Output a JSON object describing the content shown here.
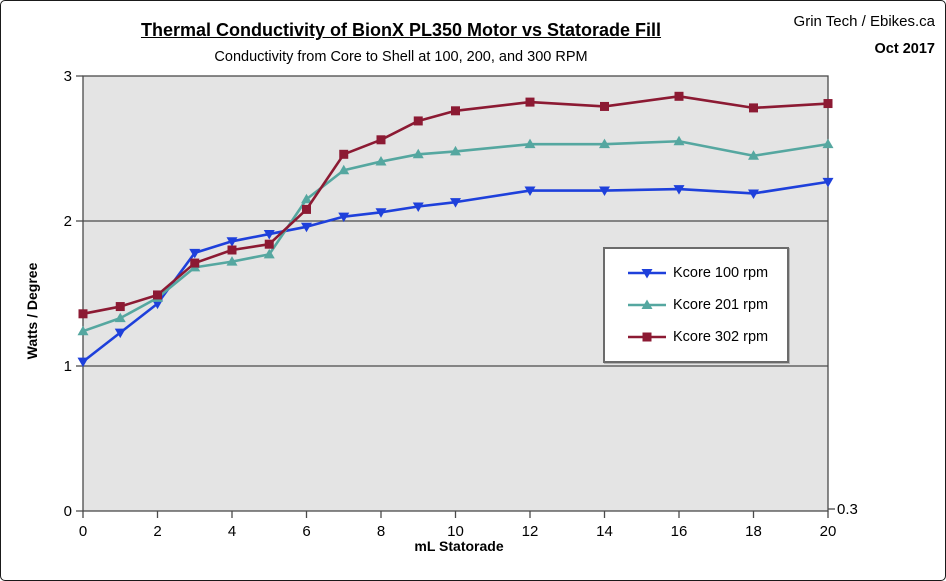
{
  "header": {
    "title": "Thermal Conductivity of BionX PL350 Motor vs Statorade Fill",
    "subtitle": "Conductivity from Core to Shell at 100, 200, and 300 RPM",
    "brand": "Grin Tech / Ebikes.ca",
    "date": "Oct 2017"
  },
  "chart_data": {
    "type": "line",
    "title": "Thermal Conductivity of BionX PL350 Motor vs Statorade Fill",
    "subtitle": "Conductivity from Core to Shell at 100, 200, and 300 RPM",
    "xlabel": "mL Statorade",
    "ylabel": "Watts / Degree",
    "xlim": [
      0,
      20
    ],
    "ylim": [
      0,
      3
    ],
    "xticks": [
      0,
      2,
      4,
      6,
      8,
      10,
      12,
      14,
      16,
      18,
      20
    ],
    "yticks": [
      0,
      1,
      2,
      3
    ],
    "grid_y": [
      1,
      2
    ],
    "right_axis_label": "0.3",
    "grid": "horizontal",
    "legend_position": "middle-right",
    "plot_bg": "#e4e4e4",
    "axis_color": "#4a4a4a",
    "x": [
      0,
      1,
      2,
      3,
      4,
      5,
      6,
      7,
      8,
      9,
      10,
      12,
      14,
      16,
      18,
      20
    ],
    "series": [
      {
        "name": "Kcore 100 rpm",
        "color": "#1e40db",
        "marker": "triangle-down",
        "values": [
          1.03,
          1.23,
          1.43,
          1.78,
          1.86,
          1.91,
          1.96,
          2.03,
          2.06,
          2.1,
          2.13,
          2.21,
          2.21,
          2.22,
          2.19,
          2.27
        ]
      },
      {
        "name": "Kcore 201 rpm",
        "color": "#55a7a0",
        "marker": "triangle-up",
        "values": [
          1.24,
          1.33,
          1.47,
          1.68,
          1.72,
          1.77,
          2.15,
          2.35,
          2.41,
          2.46,
          2.48,
          2.53,
          2.53,
          2.55,
          2.45,
          2.53
        ]
      },
      {
        "name": "Kcore 302 rpm",
        "color": "#8c1a33",
        "marker": "square",
        "values": [
          1.36,
          1.41,
          1.49,
          1.71,
          1.8,
          1.84,
          2.08,
          2.46,
          2.56,
          2.69,
          2.76,
          2.82,
          2.79,
          2.86,
          2.78,
          2.81
        ]
      }
    ]
  }
}
